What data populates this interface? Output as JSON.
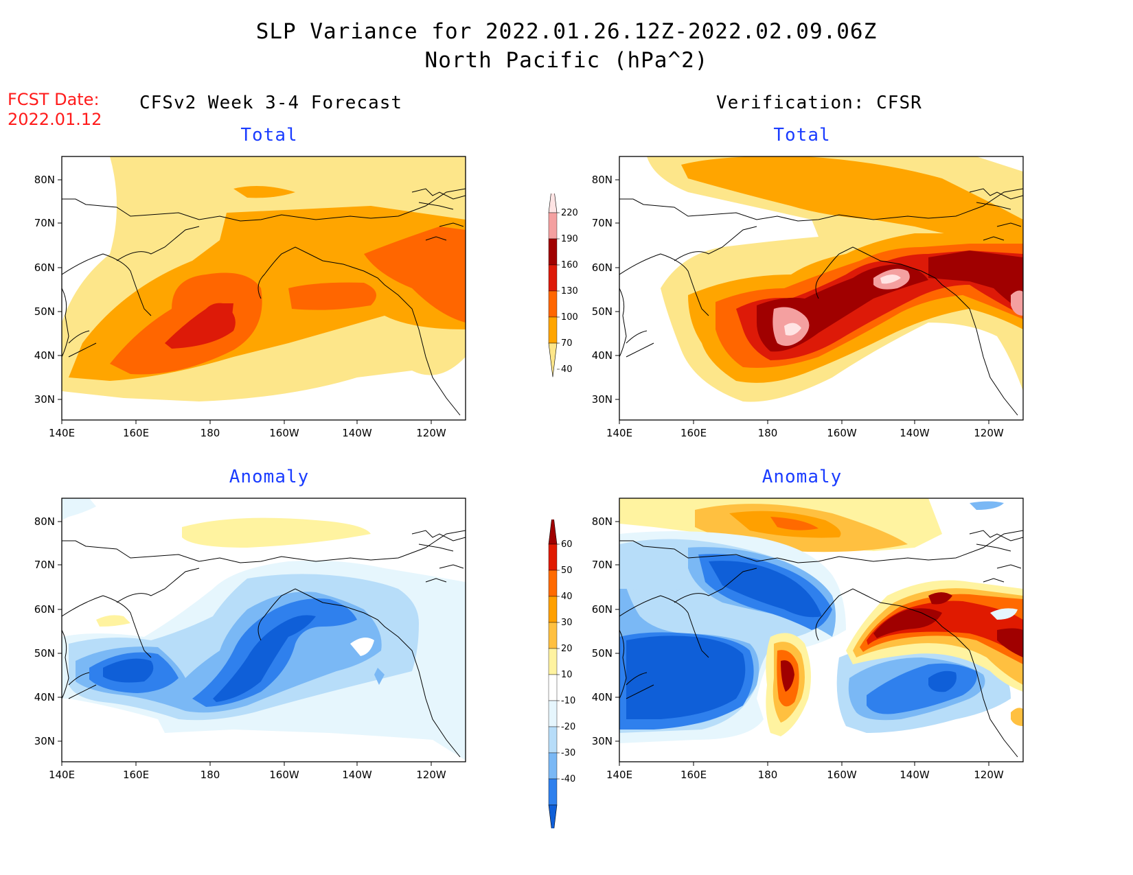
{
  "header": {
    "title_line1": "SLP Variance for 2022.01.26.12Z-2022.02.09.06Z",
    "title_line2": "North Pacific (hPa^2)",
    "fcst_label": "FCST Date:",
    "fcst_date": "2022.01.12",
    "left_column_title": "CFSv2 Week 3-4 Forecast",
    "right_column_title": "Verification: CFSR"
  },
  "panels": {
    "top_left_title": "Total",
    "top_right_title": "Total",
    "bottom_left_title": "Anomaly",
    "bottom_right_title": "Anomaly"
  },
  "map": {
    "lat_labels": [
      "80N",
      "70N",
      "60N",
      "50N",
      "40N",
      "30N"
    ],
    "lon_labels": [
      "140E",
      "160E",
      "180",
      "160W",
      "140W",
      "120W"
    ]
  },
  "colorbars": {
    "total": {
      "levels": [
        "40",
        "70",
        "100",
        "130",
        "160",
        "190",
        "220"
      ],
      "colors": [
        "#fde68a",
        "#ffa500",
        "#ff6600",
        "#dd1a08",
        "#a00000",
        "#f4a0a0",
        "#ffe4e4"
      ]
    },
    "anomaly": {
      "levels": [
        "-40",
        "-30",
        "-20",
        "-10",
        "10",
        "20",
        "30",
        "40",
        "50",
        "60"
      ],
      "colors": [
        "#0f5fd8",
        "#2f80ed",
        "#7ab8f5",
        "#b7ddf9",
        "#e6f6fd",
        "#ffffff",
        "#fff3a0",
        "#ffc040",
        "#ffa000",
        "#ff6a00",
        "#e01a00",
        "#a00000"
      ]
    }
  },
  "colors": {
    "title_blue": "#1a3cff",
    "fcst_red": "#ff1a1a"
  }
}
